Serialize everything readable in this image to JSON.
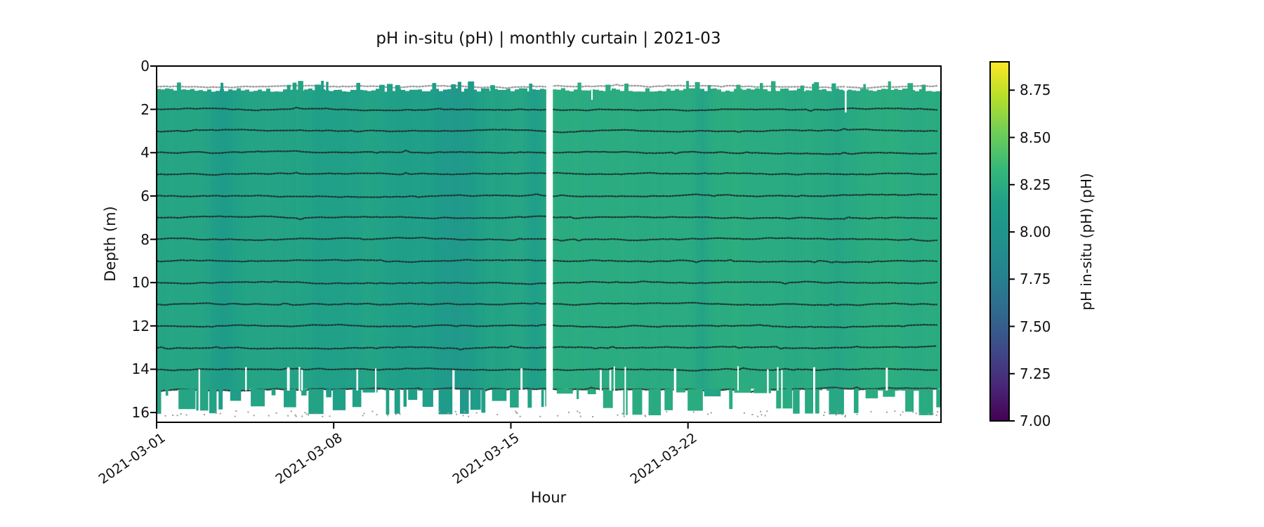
{
  "figure": {
    "title": "pH in-situ (pH) | monthly curtain | 2021-03",
    "xlabel": "Hour",
    "ylabel": "Depth (m)"
  },
  "chart_data": {
    "type": "heatmap",
    "subtype": "time-depth curtain plot",
    "title": "pH in-situ (pH) | monthly curtain | 2021-03",
    "xlabel": "Hour",
    "ylabel": "Depth (m)",
    "x_start": "2021-03-01",
    "x_end": "2021-04-01",
    "x_tick_days": [
      0,
      7,
      14,
      21
    ],
    "x_tick_labels": [
      "2021-03-01",
      "2021-03-08",
      "2021-03-15",
      "2021-03-22"
    ],
    "y_tick_labels": [
      "0",
      "2",
      "4",
      "6",
      "8",
      "10",
      "12",
      "14",
      "16"
    ],
    "y_tick_values": [
      0,
      2,
      4,
      6,
      8,
      10,
      12,
      14,
      16
    ],
    "ylim": [
      0,
      16.45
    ],
    "grid": false,
    "legend_position": "none",
    "colorbar": {
      "label": "pH in-situ (pH) (pH)",
      "colormap": "viridis",
      "vmin": 7.0,
      "vmax": 8.9,
      "tick_values": [
        8.75,
        8.5,
        8.25,
        8.0,
        7.75,
        7.5,
        7.25,
        7.0
      ],
      "tick_labels": [
        "8.75",
        "8.50",
        "8.25",
        "8.00",
        "7.75",
        "7.50",
        "7.25",
        "7.00"
      ]
    },
    "field": {
      "description": "pH curtain: nearly uniform green/teal field, pH ~8.15-8.25 over the whole month",
      "ph_typical_before_gap": 8.2,
      "ph_typical_after_gap": 8.25,
      "ph_stripe_range": [
        8.08,
        8.28
      ],
      "darker_stripe_days": [
        2.7,
        11.8,
        14.9,
        21.6,
        27.0
      ],
      "top_of_data_depth_m": 1.1,
      "solid_bottom_depth_m": 14.95,
      "intermittent_bottom_depth_m": 16.2,
      "sensor_trace_depths_m": [
        1,
        2,
        3,
        4,
        5,
        6,
        7,
        8,
        9,
        10,
        11,
        12,
        13,
        14,
        15,
        16
      ],
      "data_gap_days": [
        15.4,
        15.66
      ],
      "data_gap_note": "full-depth white gap around 2021-03-16 midday",
      "color_field_typical": "#26a684",
      "color_sensor_trace": "#1c3e39",
      "color_gray_markers": "#9c9c9c"
    }
  }
}
